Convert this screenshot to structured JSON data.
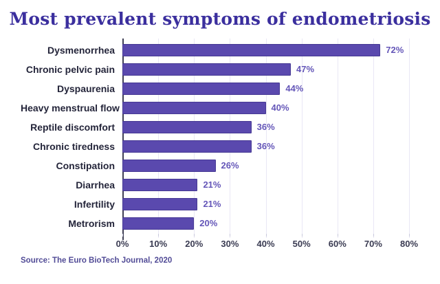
{
  "title": "Most prevalent symptoms of endometriosis",
  "source": "Source: The Euro BioTech Journal, 2020",
  "colors": {
    "title": "#3b2f9e",
    "bar_fill": "#5a49ae",
    "bar_border": "#453893",
    "value_label": "#6456b8",
    "category_label": "#24253a",
    "tick_label": "#3a3b52",
    "gridline": "#e9e7f5",
    "axis_line": "#3f3f55",
    "source_text": "#514b96"
  },
  "chart_data": {
    "type": "bar",
    "orientation": "horizontal",
    "title": "Most prevalent symptoms of endometriosis",
    "categories": [
      "Dysmenorrhea",
      "Chronic pelvic pain",
      "Dyspaurenia",
      "Heavy menstrual flow",
      "Reptile discomfort",
      "Chronic tiredness",
      "Constipation",
      "Diarrhea",
      "Infertility",
      "Metrorism"
    ],
    "values": [
      72,
      47,
      44,
      40,
      36,
      36,
      26,
      21,
      21,
      20
    ],
    "value_labels": [
      "72%",
      "47%",
      "44%",
      "40%",
      "36%",
      "36%",
      "26%",
      "21%",
      "21%",
      "20%"
    ],
    "xlabel": "",
    "ylabel": "",
    "xlim": [
      0,
      80
    ],
    "x_ticks": [
      "0%",
      "10%",
      "20%",
      "30%",
      "40%",
      "50%",
      "60%",
      "70%",
      "80%"
    ],
    "grid": "vertical",
    "legend": "none"
  }
}
